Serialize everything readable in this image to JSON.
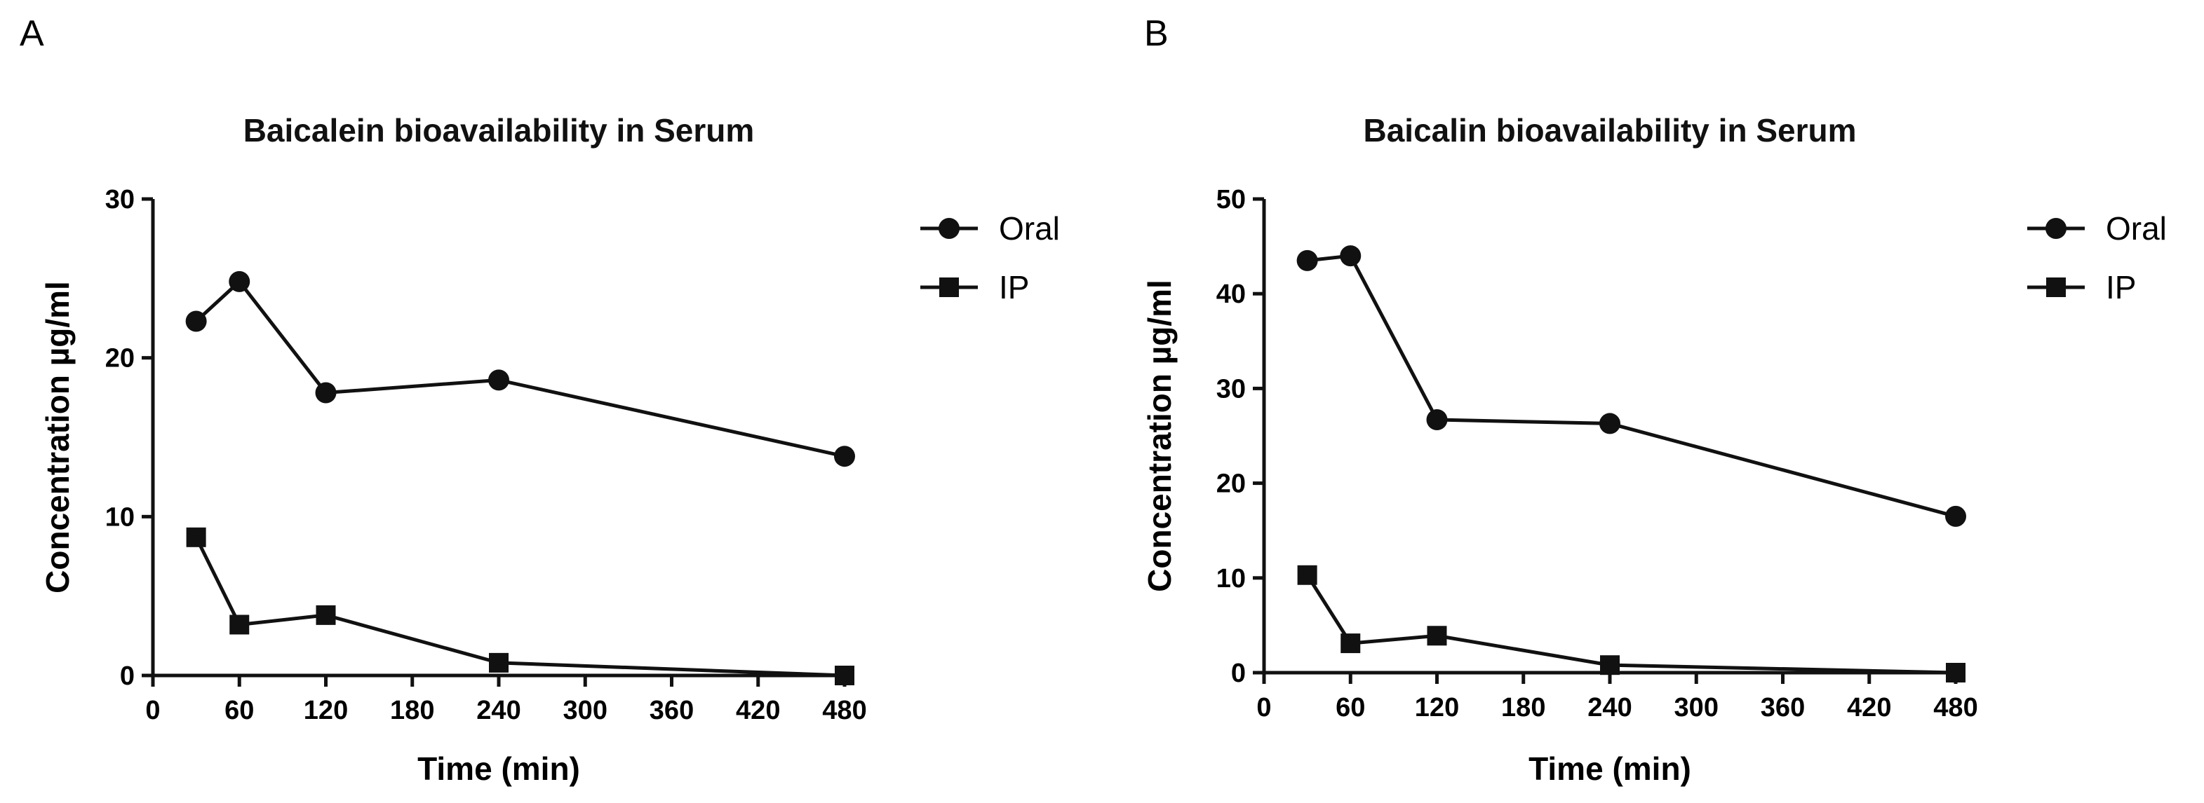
{
  "chart_data": [
    {
      "panel_label": "A",
      "type": "line",
      "title": "Baicalein bioavailability in Serum",
      "xlabel": "Time (min)",
      "ylabel": "Concentration µg/ml",
      "xlim": [
        0,
        480
      ],
      "ylim": [
        0,
        30
      ],
      "xticks": [
        0,
        60,
        120,
        180,
        240,
        300,
        360,
        420,
        480
      ],
      "yticks": [
        0,
        10,
        20,
        30
      ],
      "grid": false,
      "legend": "top-right",
      "series": [
        {
          "name": "Oral",
          "marker": "circle",
          "x": [
            30,
            60,
            120,
            240,
            480
          ],
          "y": [
            22.3,
            24.8,
            17.8,
            18.6,
            13.8
          ]
        },
        {
          "name": "IP",
          "marker": "square",
          "x": [
            30,
            60,
            120,
            240,
            480
          ],
          "y": [
            8.7,
            3.2,
            3.8,
            0.8,
            0.0
          ]
        }
      ]
    },
    {
      "panel_label": "B",
      "type": "line",
      "title": "Baicalin bioavailability in Serum",
      "xlabel": "Time (min)",
      "ylabel": "Concentration µg/ml",
      "xlim": [
        0,
        480
      ],
      "ylim": [
        0,
        50
      ],
      "xticks": [
        0,
        60,
        120,
        180,
        240,
        300,
        360,
        420,
        480
      ],
      "yticks": [
        0,
        10,
        20,
        30,
        40,
        50
      ],
      "grid": false,
      "legend": "top-right",
      "series": [
        {
          "name": "Oral",
          "marker": "circle",
          "x": [
            30,
            60,
            120,
            240,
            480
          ],
          "y": [
            43.5,
            44.0,
            26.7,
            26.3,
            16.5
          ]
        },
        {
          "name": "IP",
          "marker": "square",
          "x": [
            30,
            60,
            120,
            240,
            480
          ],
          "y": [
            10.3,
            3.1,
            3.9,
            0.8,
            0.0
          ]
        }
      ]
    }
  ]
}
